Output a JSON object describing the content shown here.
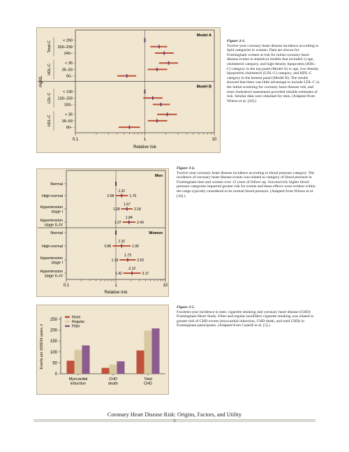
{
  "fig33": {
    "caption_title": "Figure 3-3.",
    "caption": "Twelve-year coronary heart disease incidence according to lipid categories in women. Data are shown for Framingham women at risk for initial coronary heart disease events in statistical models that included 1) age, cholesterol category, and high-density lipoprotein (HDL-C) category in the top panel (Model A) or age, low-density lipoprotein cholesterol (LDL-C) category, and HDL-C category in the bottom panel (Model B). The results showed that there was little advantage to include LDL-C in the initial screening for coronary heart disease risk, and total cholesterol assessment provided reliable estimates of risk. Similar data were obtained for men. (Adapted from Wilson et al. [10].)",
    "yunit": "mg/dL",
    "xlabel": "Relative risk",
    "xticks": [
      "0.1",
      "1",
      "10"
    ],
    "models": [
      {
        "label": "Model A",
        "groups": [
          {
            "name": "Total-C",
            "rows": [
              {
                "label": "< 200",
                "est": 1.0,
                "lo": 1.0,
                "hi": 1.0
              },
              {
                "label": "200–239",
                "est": 1.6,
                "lo": 1.2,
                "hi": 2.1
              },
              {
                "label": "240–",
                "est": 1.9,
                "lo": 1.4,
                "hi": 2.6
              }
            ]
          },
          {
            "name": "HDL-C",
            "rows": [
              {
                "label": "< 35",
                "est": 2.2,
                "lo": 1.6,
                "hi": 3.0
              },
              {
                "label": "35–59",
                "est": 1.5,
                "lo": 1.1,
                "hi": 2.1
              },
              {
                "label": "60–",
                "est": 0.55,
                "lo": 0.4,
                "hi": 0.75
              }
            ]
          }
        ]
      },
      {
        "label": "Model B",
        "groups": [
          {
            "name": "LDL-C",
            "rows": [
              {
                "label": "< 130",
                "est": 1.0,
                "lo": 1.0,
                "hi": 1.0
              },
              {
                "label": "130–159",
                "est": 1.3,
                "lo": 0.95,
                "hi": 1.8
              },
              {
                "label": "160–",
                "est": 1.7,
                "lo": 1.3,
                "hi": 2.3
              }
            ]
          },
          {
            "name": "HDL-C",
            "rows": [
              {
                "label": "< 35",
                "est": 2.1,
                "lo": 1.5,
                "hi": 2.9
              },
              {
                "label": "35–59",
                "est": 1.5,
                "lo": 1.1,
                "hi": 2.1
              },
              {
                "label": "60–",
                "est": 0.6,
                "lo": 0.42,
                "hi": 0.85
              }
            ]
          }
        ]
      }
    ]
  },
  "fig34": {
    "caption_title": "Figure 3-4.",
    "caption": "Twelve-year coronary heart disease incidence according to blood pressure category. The incidence of coronary heart disease events was related to category of blood pressure in Framingham men and women over 12 years of follow-up. Successively higher blood pressure categories imparted greater risk for events and these effects were evident within the range typically considered to be normal blood pressure. (Adapted from Wilson et al. [10].)",
    "xlabel": "Relative risk",
    "xticks": [
      "0.1",
      "1",
      "10"
    ],
    "panels": [
      {
        "label": "Men",
        "rows": [
          {
            "label": [
              "Normal"
            ],
            "est": 1.0,
            "lo": 1.0,
            "hi": 1.0,
            "txt_est": "",
            "txt_lo": "",
            "txt_hi": ""
          },
          {
            "label": [
              "High-normal"
            ],
            "est": 1.31,
            "lo": 0.98,
            "hi": 1.76,
            "txt_est": "1.31",
            "txt_lo": "0.98",
            "txt_hi": "1.76"
          },
          {
            "label": [
              "Hypertension",
              "stage I"
            ],
            "est": 1.67,
            "lo": 1.28,
            "hi": 2.18,
            "txt_est": "1.67",
            "txt_lo": "1.28",
            "txt_hi": "2.18"
          },
          {
            "label": [
              "Hypertension",
              "stage II–IV"
            ],
            "est": 1.84,
            "lo": 1.37,
            "hi": 2.49,
            "txt_est": "1.84",
            "txt_lo": "1.37",
            "txt_hi": "2.49"
          }
        ]
      },
      {
        "label": "Women",
        "rows": [
          {
            "label": [
              "Normal"
            ],
            "est": 1.0,
            "lo": 1.0,
            "hi": 1.0,
            "txt_est": "",
            "txt_lo": "",
            "txt_hi": ""
          },
          {
            "label": [
              "High-normal"
            ],
            "est": 1.31,
            "lo": 0.86,
            "hi": 1.99,
            "txt_est": "1.31",
            "txt_lo": "0.86",
            "txt_hi": "1.99"
          },
          {
            "label": [
              "Hypertension",
              "stage I"
            ],
            "est": 1.73,
            "lo": 1.19,
            "hi": 2.52,
            "txt_est": "1.73",
            "txt_lo": "1.19",
            "txt_hi": "2.52"
          },
          {
            "label": [
              "Hypertension",
              "stage II–IV"
            ],
            "est": 2.12,
            "lo": 1.42,
            "hi": 3.17,
            "txt_est": "2.12",
            "txt_lo": "1.42",
            "txt_hi": "3.17"
          }
        ]
      }
    ]
  },
  "fig35": {
    "caption_title": "Figure 3-5.",
    "caption": "Fourteen-year incidence in men: cigarette smoking and coronary heart disease (CHD) Framingham Heart Study. Filter and regular (nonfilter) cigarette smoking was related to greater risk of CHD events (myocardial infarction, CHD death, and total CHD) in Framingham participants. (Adapted from Castelli et al. [5].)"
  },
  "chart_data": {
    "type": "bar",
    "categories": [
      "Myocardial infarction",
      "CHD death",
      "Total CHD"
    ],
    "category_lines": [
      [
        "Myocardial",
        "infarction"
      ],
      [
        "CHD",
        "death"
      ],
      [
        "Total",
        "CHD"
      ]
    ],
    "series": [
      {
        "name": "None",
        "color": "#c0523d",
        "values": [
          60,
          27,
          107
        ]
      },
      {
        "name": "Regular",
        "color": "#d9c9a3",
        "values": [
          110,
          42,
          198
        ]
      },
      {
        "name": "Filter",
        "color": "#8c5c8e",
        "values": [
          130,
          57,
          208
        ]
      }
    ],
    "ylabel": "Events per 1000/14 years, n",
    "ylim": [
      0,
      250
    ],
    "yticks": [
      "0",
      "50",
      "100",
      "150",
      "200",
      "250"
    ]
  },
  "footer": {
    "title": "Coronary Heart Disease Risk: Origins, Factors, and Utility",
    "page": "3"
  },
  "colors": {
    "bar": "#c0523d",
    "ref": "#5b3a6e",
    "panel": "#f1e6cf"
  }
}
